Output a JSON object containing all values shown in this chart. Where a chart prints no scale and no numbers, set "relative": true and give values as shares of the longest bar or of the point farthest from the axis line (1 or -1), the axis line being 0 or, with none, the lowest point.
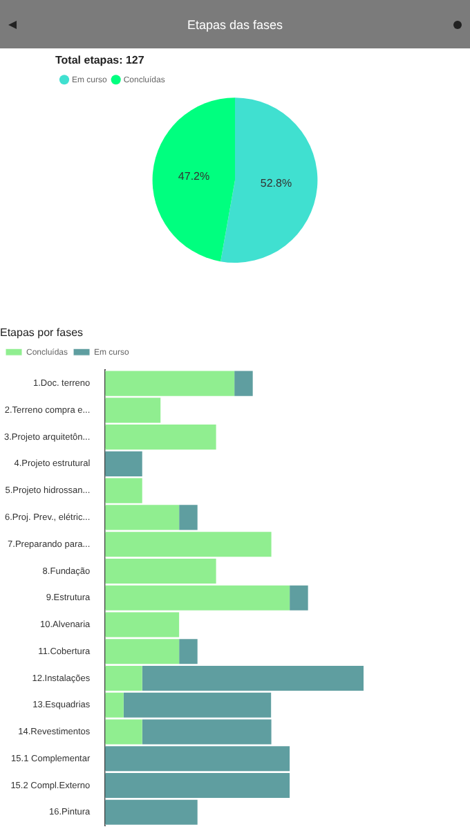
{
  "chart_data": [
    {
      "type": "pie",
      "title": "Etapas das fases",
      "subtitle": "Total etapas: 127",
      "categories": [
        "Em curso",
        "Concluídas"
      ],
      "values": [
        52.8,
        47.2
      ],
      "colors": [
        "#40e0d0",
        "#00ff7f"
      ],
      "value_labels": [
        "52.8%",
        "47.2%"
      ],
      "legend": "top left"
    },
    {
      "type": "bar",
      "orientation": "horizontal",
      "stacked": true,
      "relative": true,
      "title": "Etapas por fases",
      "legend": "top left",
      "categories": [
        "1.Doc. terreno",
        "2.Terreno compra e...",
        "3.Projeto arquitetôn...",
        "4.Projeto estrutural",
        "5.Projeto hidrossan...",
        "6.Proj. Prev., elétric...",
        "7.Preparando para...",
        "8.Fundação",
        "9.Estrutura",
        "10.Alvenaria",
        "11.Cobertura",
        "12.Instalações",
        "13.Esquadrias",
        "14.Revestimentos",
        "15.1 Complementar",
        "15.2 Compl.Externo",
        "16.Pintura"
      ],
      "series": [
        {
          "name": "Concluídas",
          "color": "#90ee90",
          "values": [
            0.5,
            0.214,
            0.429,
            0,
            0.143,
            0.286,
            0.643,
            0.429,
            0.714,
            0.286,
            0.286,
            0.143,
            0.071,
            0.143,
            0,
            0,
            0
          ]
        },
        {
          "name": "Em curso",
          "color": "#5f9ea0",
          "values": [
            0.071,
            0,
            0,
            0.143,
            0,
            0.071,
            0,
            0,
            0.071,
            0,
            0.071,
            0.857,
            0.571,
            0.5,
            0.714,
            0.714,
            0.357
          ]
        }
      ]
    }
  ]
}
